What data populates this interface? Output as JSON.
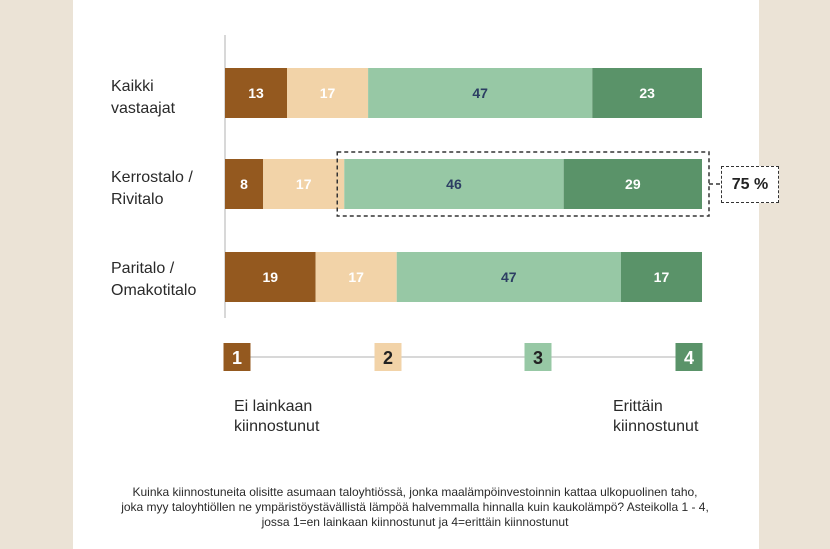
{
  "chart_data": {
    "type": "bar",
    "orientation": "horizontal-stacked",
    "categories": [
      "Kaikki\nvastaajat",
      "Kerrostalo /\nRivitalo",
      "Paritalo /\nOmakotitalo"
    ],
    "series": [
      {
        "name": "1",
        "color": "#94591f",
        "label_color": "#ffffff",
        "values": [
          13,
          8,
          19
        ]
      },
      {
        "name": "2",
        "color": "#f2d3a8",
        "label_color": "#ffffff",
        "values": [
          17,
          17,
          17
        ]
      },
      {
        "name": "3",
        "color": "#97c8a5",
        "label_color": "#2c3e63",
        "values": [
          47,
          46,
          47
        ]
      },
      {
        "name": "4",
        "color": "#5a9369",
        "label_color": "#ffffff",
        "values": [
          23,
          29,
          17
        ]
      }
    ],
    "xlim": [
      0,
      100
    ],
    "highlight": {
      "category_index": 1,
      "from_series": 2,
      "label": "75 %"
    }
  },
  "scale": {
    "low_label": "Ei lainkaan\nkiinnostunut",
    "high_label": "Erittäin\nkiinnostunut",
    "steps": [
      {
        "label": "1",
        "color": "#94591f",
        "text_color": "#ffffff"
      },
      {
        "label": "2",
        "color": "#f2d3a8",
        "text_color": "#222222"
      },
      {
        "label": "3",
        "color": "#97c8a5",
        "text_color": "#222222"
      },
      {
        "label": "4",
        "color": "#5a9369",
        "text_color": "#ffffff"
      }
    ]
  },
  "footnote": "Kuinka kiinnostuneita olisitte asumaan taloyhtiössä, jonka maalämpöinvestoinnin kattaa ulkopuolinen taho, joka myy taloyhtiöllen ne ympäristöystävällistä lämpöä halvemmalla hinnalla kuin kaukolämpö? Asteikolla 1 - 4, jossa 1=en lainkaan kiinnostunut ja 4=erittäin kiinnostunut"
}
